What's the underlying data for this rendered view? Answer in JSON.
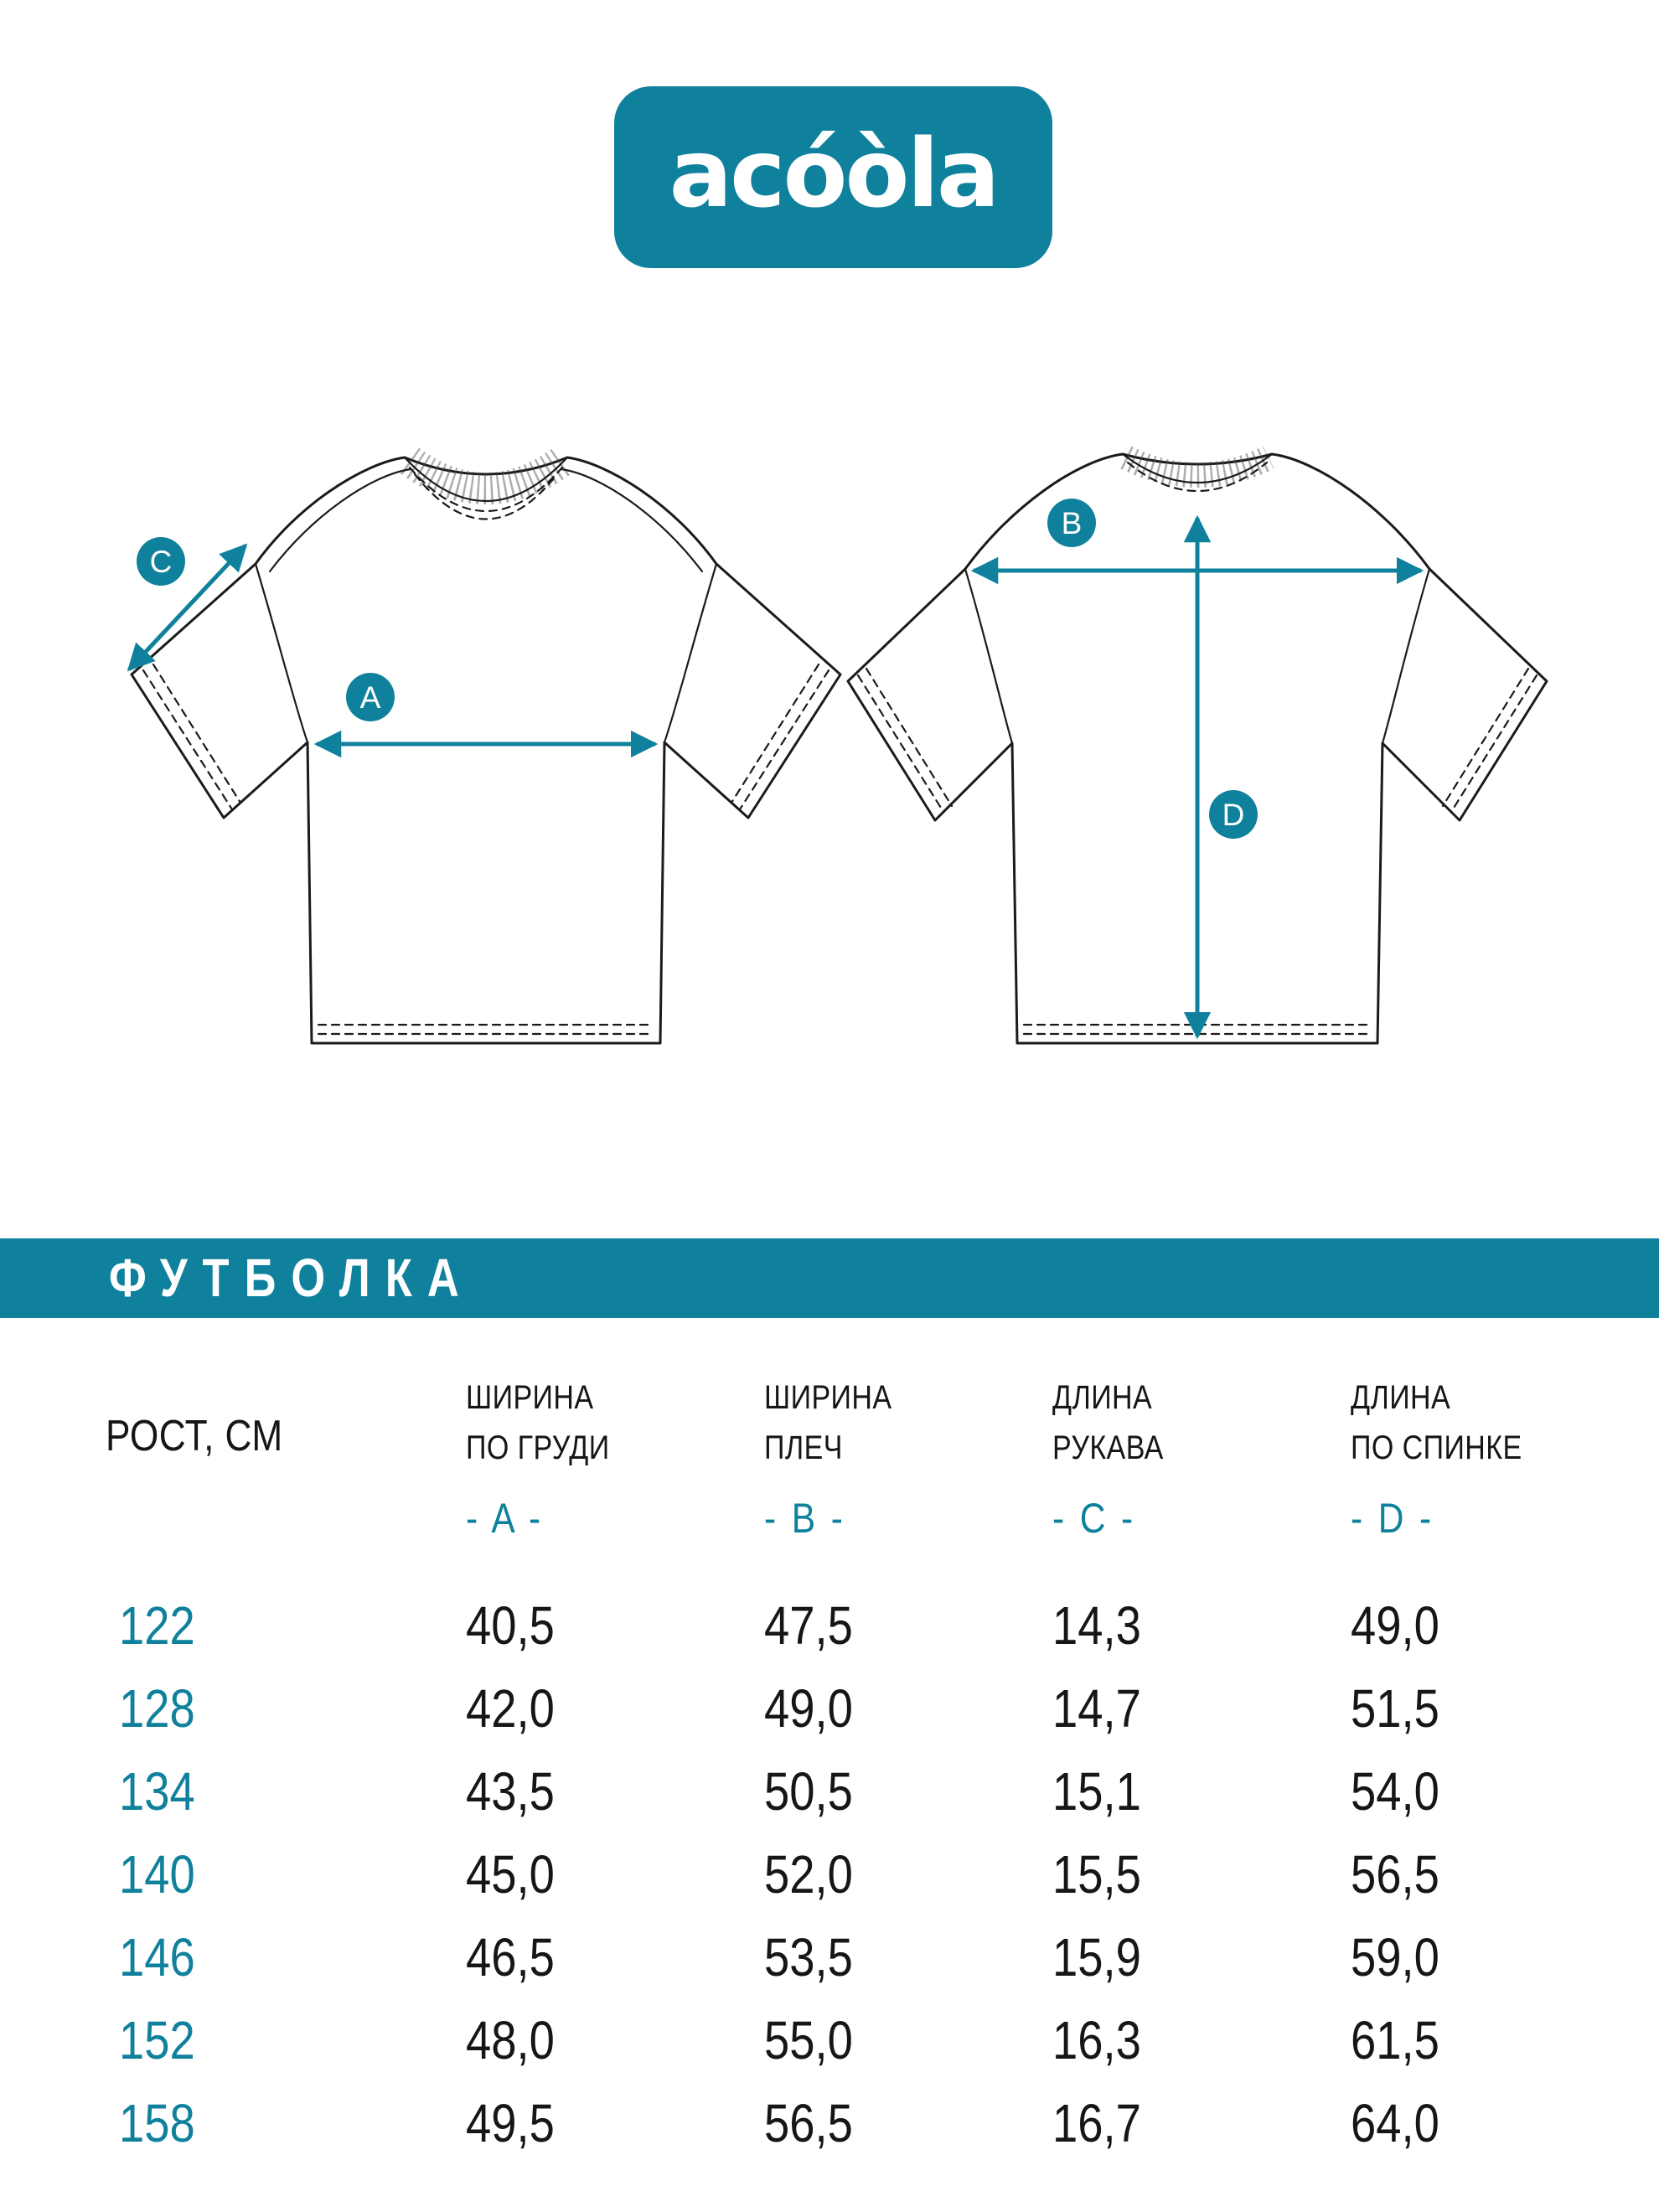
{
  "brand": {
    "logo_text": "acóòla"
  },
  "colors": {
    "teal": "#0F819C",
    "ink": "#1B1B1B"
  },
  "diagram": {
    "front": {
      "chest_label": "A",
      "sleeve_label": "C"
    },
    "back": {
      "shoulder_label": "B",
      "back_length_label": "D"
    }
  },
  "banner": {
    "title": "ФУТБОЛКА"
  },
  "table": {
    "row_header": "РОСТ, СМ",
    "columns": [
      {
        "title_line1": "ШИРИНА",
        "title_line2": "ПО ГРУДИ",
        "code": "- A -"
      },
      {
        "title_line1": "ШИРИНА",
        "title_line2": "ПЛЕЧ",
        "code": "- B -"
      },
      {
        "title_line1": "ДЛИНА",
        "title_line2": "РУКАВА",
        "code": "- C -"
      },
      {
        "title_line1": "ДЛИНА",
        "title_line2": "ПО СПИНКЕ",
        "code": "- D -"
      }
    ],
    "rows": [
      {
        "height": "122",
        "values": [
          "40,5",
          "47,5",
          "14,3",
          "49,0"
        ]
      },
      {
        "height": "128",
        "values": [
          "42,0",
          "49,0",
          "14,7",
          "51,5"
        ]
      },
      {
        "height": "134",
        "values": [
          "43,5",
          "50,5",
          "15,1",
          "54,0"
        ]
      },
      {
        "height": "140",
        "values": [
          "45,0",
          "52,0",
          "15,5",
          "56,5"
        ]
      },
      {
        "height": "146",
        "values": [
          "46,5",
          "53,5",
          "15,9",
          "59,0"
        ]
      },
      {
        "height": "152",
        "values": [
          "48,0",
          "55,0",
          "16,3",
          "61,5"
        ]
      },
      {
        "height": "158",
        "values": [
          "49,5",
          "56,5",
          "16,7",
          "64,0"
        ]
      }
    ]
  }
}
